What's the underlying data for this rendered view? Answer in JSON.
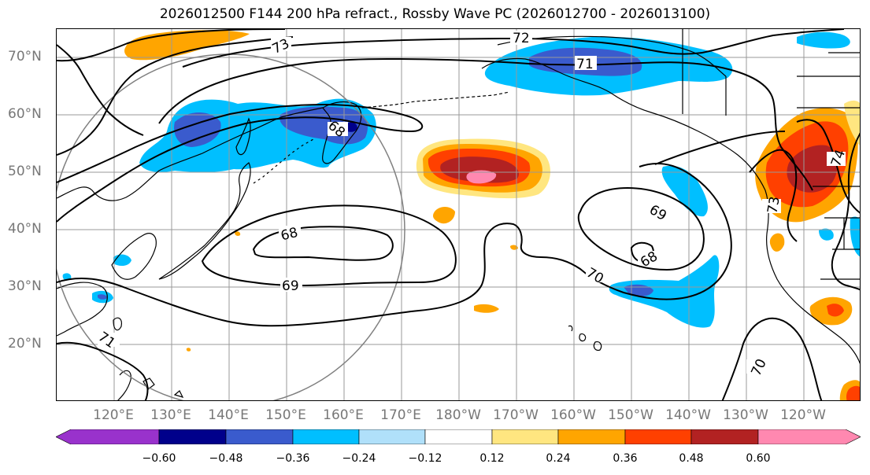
{
  "title": "2026012500 F144 200 hPa refract., Rossby Wave PC (2026012700 - 2026013100)",
  "lat_labels": [
    "70°N",
    "60°N",
    "50°N",
    "40°N",
    "30°N",
    "20°N"
  ],
  "lon_labels": [
    "120°E",
    "130°E",
    "140°E",
    "150°E",
    "160°E",
    "170°E",
    "180°W",
    "170°W",
    "160°W",
    "150°W",
    "140°W",
    "130°W",
    "120°W"
  ],
  "contour_labels": [
    "72",
    "71",
    "73",
    "68",
    "68",
    "69",
    "69",
    "68",
    "70",
    "71",
    "70",
    "73",
    "74"
  ],
  "colorbar": {
    "ticks": [
      "−0.60",
      "−0.48",
      "−0.36",
      "−0.24",
      "−0.12",
      "0.12",
      "0.24",
      "0.36",
      "0.48",
      "0.60"
    ],
    "colors": [
      "#9932cc",
      "#00008b",
      "#3a5bcd",
      "#00bfff",
      "#b0e0fa",
      "#ffffff",
      "#ffe680",
      "#ffa500",
      "#ff4000",
      "#b22222",
      "#ff88b0"
    ]
  },
  "fill_colors": {
    "neg_light": "#00bfff",
    "neg_mid": "#3a5bcd",
    "neg_dark": "#00008b",
    "pos_yellow": "#ffe680",
    "pos_orange": "#ffa500",
    "pos_red": "#ff4000",
    "pos_dark": "#b22222",
    "pos_pink": "#ff88b0"
  }
}
